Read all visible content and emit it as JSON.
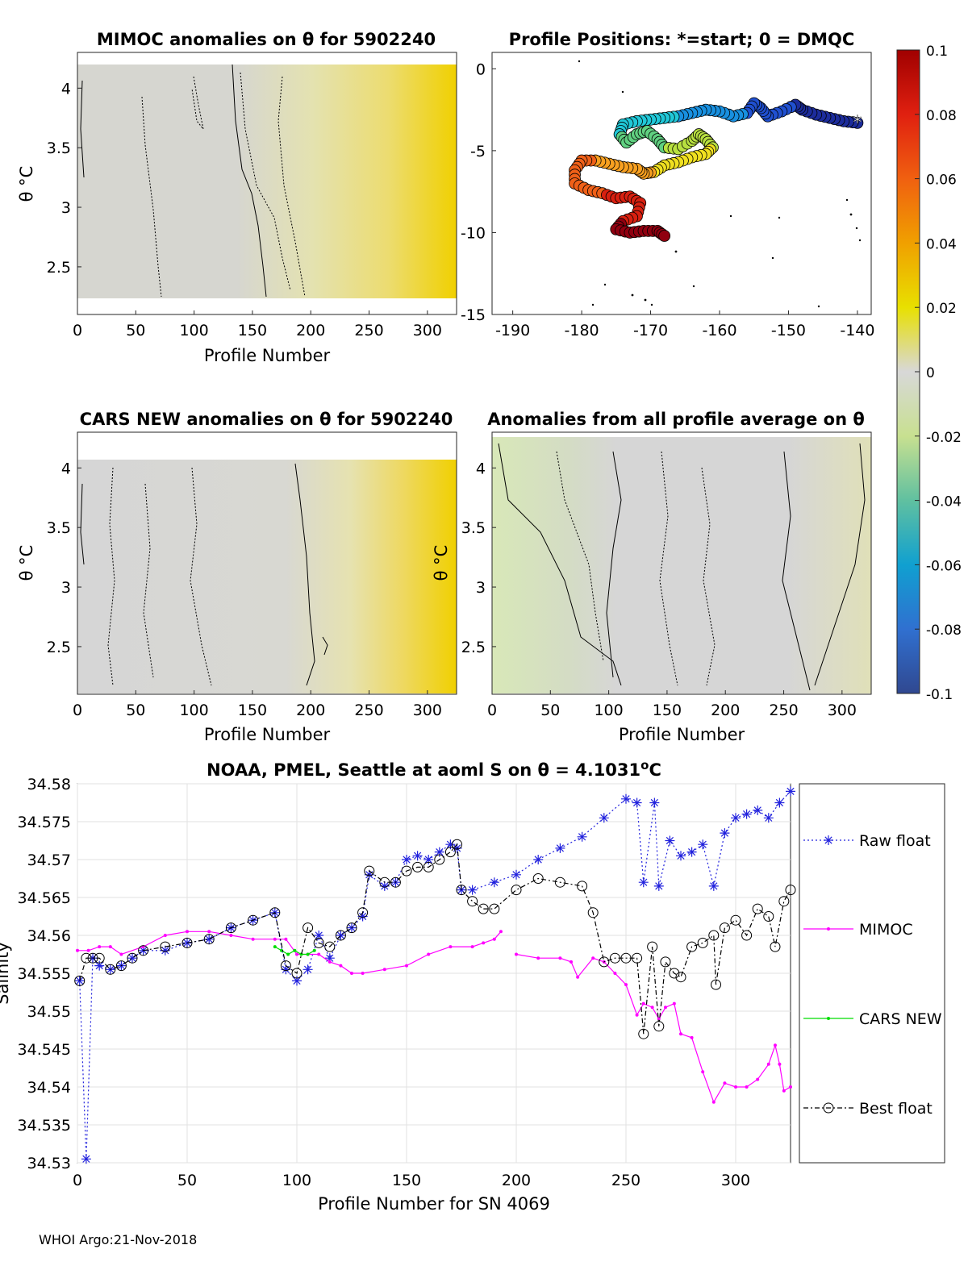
{
  "footer": "WHOI Argo:21-Nov-2018",
  "colors": {
    "heat_gray": "#d4d4d4",
    "heat_yellow": "#f0d000",
    "heat_green": "#d7e8b4",
    "raw": "#2222dd",
    "mimoc": "#ff00ff",
    "cars": "#00dd00",
    "best": "#000000"
  },
  "chart_data": [
    {
      "id": "mimoc",
      "type": "heatmap",
      "title": "MIMOC anomalies on θ  for 5902240",
      "xlabel": "Profile Number",
      "ylabel": "θ °C",
      "xlim": [
        0,
        325
      ],
      "ylim": [
        2.1,
        4.3
      ],
      "xticks": [
        0,
        50,
        100,
        150,
        200,
        250,
        300
      ],
      "yticks": [
        2.5,
        3,
        3.5,
        4
      ],
      "data_range": {
        "x": [
          0,
          325
        ],
        "y": [
          2.26,
          4.18
        ]
      },
      "note": "near-zero anomalies for profiles 0-180, increasing positive (yellow) toward profile 325"
    },
    {
      "id": "positions",
      "type": "scatter",
      "title": "Profile Positions: *=start; 0 = DMQC",
      "xlabel": "",
      "ylabel": "",
      "xlim": [
        -193,
        -138
      ],
      "ylim": [
        -15,
        1
      ],
      "xticks": [
        -190,
        -180,
        -170,
        -160,
        -150,
        -140
      ],
      "yticks": [
        0,
        -5,
        -10,
        -15
      ],
      "start": {
        "lon": -140,
        "lat": -3.3
      },
      "track": [
        [
          -140,
          -3.3
        ],
        [
          -142,
          -3.2
        ],
        [
          -144,
          -3.0
        ],
        [
          -146,
          -2.8
        ],
        [
          -148,
          -2.5
        ],
        [
          -149,
          -2.2
        ],
        [
          -151,
          -2.6
        ],
        [
          -153,
          -2.9
        ],
        [
          -154,
          -2.4
        ],
        [
          -155,
          -2.1
        ],
        [
          -156,
          -2.7
        ],
        [
          -158,
          -2.9
        ],
        [
          -160,
          -2.6
        ],
        [
          -162,
          -2.5
        ],
        [
          -164,
          -2.7
        ],
        [
          -166,
          -2.9
        ],
        [
          -168,
          -3.0
        ],
        [
          -170,
          -3.1
        ],
        [
          -172,
          -3.2
        ],
        [
          -174,
          -3.4
        ],
        [
          -174.5,
          -4.0
        ],
        [
          -173.5,
          -4.5
        ],
        [
          -172,
          -4.0
        ],
        [
          -170.5,
          -3.8
        ],
        [
          -169,
          -4.3
        ],
        [
          -168,
          -4.8
        ],
        [
          -166,
          -4.9
        ],
        [
          -164,
          -4.4
        ],
        [
          -163,
          -4.0
        ],
        [
          -162,
          -4.3
        ],
        [
          -161,
          -4.8
        ],
        [
          -162,
          -5.2
        ],
        [
          -164,
          -5.4
        ],
        [
          -166,
          -5.7
        ],
        [
          -168,
          -5.9
        ],
        [
          -169.5,
          -6.3
        ],
        [
          -171,
          -6.4
        ],
        [
          -172,
          -6.1
        ],
        [
          -174,
          -6.0
        ],
        [
          -176,
          -5.8
        ],
        [
          -178,
          -5.6
        ],
        [
          -180,
          -5.6
        ],
        [
          -181,
          -6.2
        ],
        [
          -181,
          -7.0
        ],
        [
          -179,
          -7.4
        ],
        [
          -177,
          -7.6
        ],
        [
          -175,
          -7.9
        ],
        [
          -173,
          -7.8
        ],
        [
          -171.5,
          -8.2
        ],
        [
          -172,
          -9.0
        ],
        [
          -174,
          -9.3
        ],
        [
          -175,
          -9.8
        ],
        [
          -173,
          -10.0
        ],
        [
          -171,
          -9.9
        ],
        [
          -169,
          -9.9
        ],
        [
          -168,
          -10.2
        ]
      ],
      "colorbar": {
        "ticks": [
          0.1,
          0.08,
          0.06,
          0.04,
          0.02,
          0,
          -0.02,
          -0.04,
          -0.06,
          -0.08,
          -0.1
        ],
        "tick_labels": [
          "0.1",
          "0.08",
          "0.06",
          "0.04",
          "0.02",
          "0",
          "-0.02",
          "-0.04",
          "-0.06",
          "-0.08",
          "-0.1"
        ]
      }
    },
    {
      "id": "cars",
      "type": "heatmap",
      "title": "CARS NEW anomalies on θ for 5902240",
      "xlabel": "Profile Number",
      "ylabel": "θ °C",
      "xlim": [
        0,
        325
      ],
      "ylim": [
        2.1,
        4.3
      ],
      "xticks": [
        0,
        50,
        100,
        150,
        200,
        250,
        300
      ],
      "yticks": [
        2.5,
        3,
        3.5,
        4
      ],
      "data_range": {
        "x": [
          0,
          325
        ],
        "y": [
          2.1,
          4.1
        ]
      }
    },
    {
      "id": "allprof",
      "type": "heatmap",
      "title": "Anomalies from all profile average on θ",
      "xlabel": "Profile Number",
      "ylabel": "θ °C",
      "xlim": [
        0,
        325
      ],
      "ylim": [
        2.1,
        4.3
      ],
      "xticks": [
        0,
        50,
        100,
        150,
        200,
        250,
        300
      ],
      "yticks": [
        2.5,
        3,
        3.5,
        4
      ],
      "data_range": {
        "x": [
          0,
          325
        ],
        "y": [
          2.1,
          4.25
        ]
      }
    },
    {
      "id": "salinity",
      "type": "line",
      "title": "NOAA, PMEL, Seattle at aoml S on θ = 4.1031°C",
      "title_main": "NOAA, PMEL, Seattle at aoml S on θ = 4.1031",
      "title_sup": "o",
      "title_end": "C",
      "xlabel": "Profile Number for SN 4069",
      "ylabel": "Salinity",
      "xlim": [
        0,
        325
      ],
      "ylim": [
        34.53,
        34.58
      ],
      "xticks": [
        0,
        50,
        100,
        150,
        200,
        250,
        300
      ],
      "yticks": [
        34.53,
        34.535,
        34.54,
        34.545,
        34.55,
        34.555,
        34.56,
        34.565,
        34.57,
        34.575,
        34.58
      ],
      "ytick_labels": [
        "34.53",
        "34.535",
        "34.54",
        "34.545",
        "34.55",
        "34.555",
        "34.56",
        "34.565",
        "34.57",
        "34.575",
        "34.58"
      ],
      "legend": [
        "Raw float",
        "MIMOC",
        "CARS NEW",
        "Best float"
      ],
      "series": [
        {
          "name": "Raw float",
          "x": [
            1,
            4,
            7,
            10,
            15,
            20,
            25,
            30,
            40,
            50,
            60,
            70,
            80,
            90,
            95,
            100,
            105,
            110,
            115,
            120,
            125,
            130,
            133,
            140,
            145,
            150,
            155,
            160,
            165,
            170,
            173,
            175,
            180,
            190,
            200,
            210,
            220,
            230,
            240,
            250,
            255,
            258,
            263,
            265,
            270,
            275,
            280,
            285,
            290,
            295,
            300,
            305,
            310,
            315,
            320,
            325
          ],
          "values": [
            34.554,
            34.5305,
            34.557,
            34.556,
            34.5555,
            34.556,
            34.557,
            34.558,
            34.558,
            34.559,
            34.5595,
            34.561,
            34.562,
            34.563,
            34.5555,
            34.554,
            34.5555,
            34.56,
            34.557,
            34.56,
            34.561,
            34.5625,
            34.568,
            34.5665,
            34.567,
            34.57,
            34.5705,
            34.57,
            34.571,
            34.572,
            34.5715,
            34.566,
            34.566,
            34.567,
            34.568,
            34.57,
            34.5715,
            34.573,
            34.5755,
            34.578,
            34.5775,
            34.567,
            34.5775,
            34.5665,
            34.5725,
            34.5705,
            34.571,
            34.572,
            34.5665,
            34.5735,
            34.5755,
            34.576,
            34.5765,
            34.5755,
            34.5775,
            34.579
          ]
        },
        {
          "name": "MIMOC",
          "x": [
            0,
            5,
            10,
            15,
            20,
            30,
            40,
            50,
            60,
            70,
            80,
            90,
            95,
            100,
            105,
            110,
            115,
            120,
            125,
            130,
            140,
            150,
            160,
            170,
            180,
            185,
            190,
            193,
            null,
            200,
            210,
            220,
            225,
            228,
            235,
            240,
            245,
            250,
            255,
            258,
            262,
            265,
            268,
            272,
            275,
            280,
            285,
            290,
            295,
            300,
            305,
            310,
            315,
            318,
            320,
            322,
            325
          ],
          "values": [
            34.558,
            34.558,
            34.5585,
            34.5585,
            34.5575,
            34.5585,
            34.56,
            34.5605,
            34.5605,
            34.56,
            34.5595,
            34.5595,
            34.5595,
            34.5575,
            34.5575,
            34.5575,
            34.5565,
            34.556,
            34.555,
            34.555,
            34.5555,
            34.556,
            34.5575,
            34.5585,
            34.5585,
            34.559,
            34.5595,
            34.5605,
            null,
            34.5575,
            34.557,
            34.557,
            34.5565,
            34.5545,
            34.557,
            34.5565,
            34.555,
            34.5535,
            34.5495,
            34.551,
            34.5505,
            34.549,
            34.5505,
            34.551,
            34.547,
            34.5465,
            34.542,
            34.538,
            34.5405,
            34.54,
            34.54,
            34.541,
            34.543,
            34.5455,
            34.543,
            34.5395,
            34.54
          ]
        },
        {
          "name": "CARS NEW",
          "x": [
            90,
            93,
            96,
            99,
            102,
            105,
            108
          ],
          "values": [
            34.5585,
            34.558,
            34.5575,
            34.558,
            34.5575,
            34.5575,
            34.558
          ]
        },
        {
          "name": "Best float",
          "x": [
            1,
            4,
            7,
            10,
            15,
            20,
            25,
            30,
            40,
            50,
            60,
            70,
            80,
            90,
            95,
            100,
            105,
            110,
            115,
            120,
            125,
            130,
            133,
            140,
            145,
            150,
            155,
            160,
            165,
            170,
            173,
            175,
            180,
            185,
            190,
            200,
            210,
            220,
            230,
            235,
            240,
            245,
            250,
            255,
            258,
            262,
            265,
            268,
            272,
            275,
            280,
            285,
            290,
            291,
            295,
            300,
            305,
            310,
            315,
            318,
            322,
            325
          ],
          "values": [
            34.554,
            34.557,
            34.557,
            34.557,
            34.5555,
            34.556,
            34.557,
            34.558,
            34.5585,
            34.559,
            34.5595,
            34.561,
            34.562,
            34.563,
            34.556,
            34.555,
            34.561,
            34.559,
            34.5585,
            34.56,
            34.561,
            34.563,
            34.5685,
            34.567,
            34.567,
            34.5685,
            34.569,
            34.569,
            34.57,
            34.571,
            34.572,
            34.566,
            34.5645,
            34.5635,
            34.5635,
            34.566,
            34.5675,
            34.567,
            34.5665,
            34.563,
            34.5565,
            34.557,
            34.557,
            34.557,
            34.547,
            34.5585,
            34.548,
            34.5565,
            34.555,
            34.5545,
            34.5585,
            34.559,
            34.56,
            34.5535,
            34.561,
            34.562,
            34.56,
            34.5635,
            34.5625,
            34.5585,
            34.5645,
            34.566
          ]
        }
      ]
    }
  ]
}
